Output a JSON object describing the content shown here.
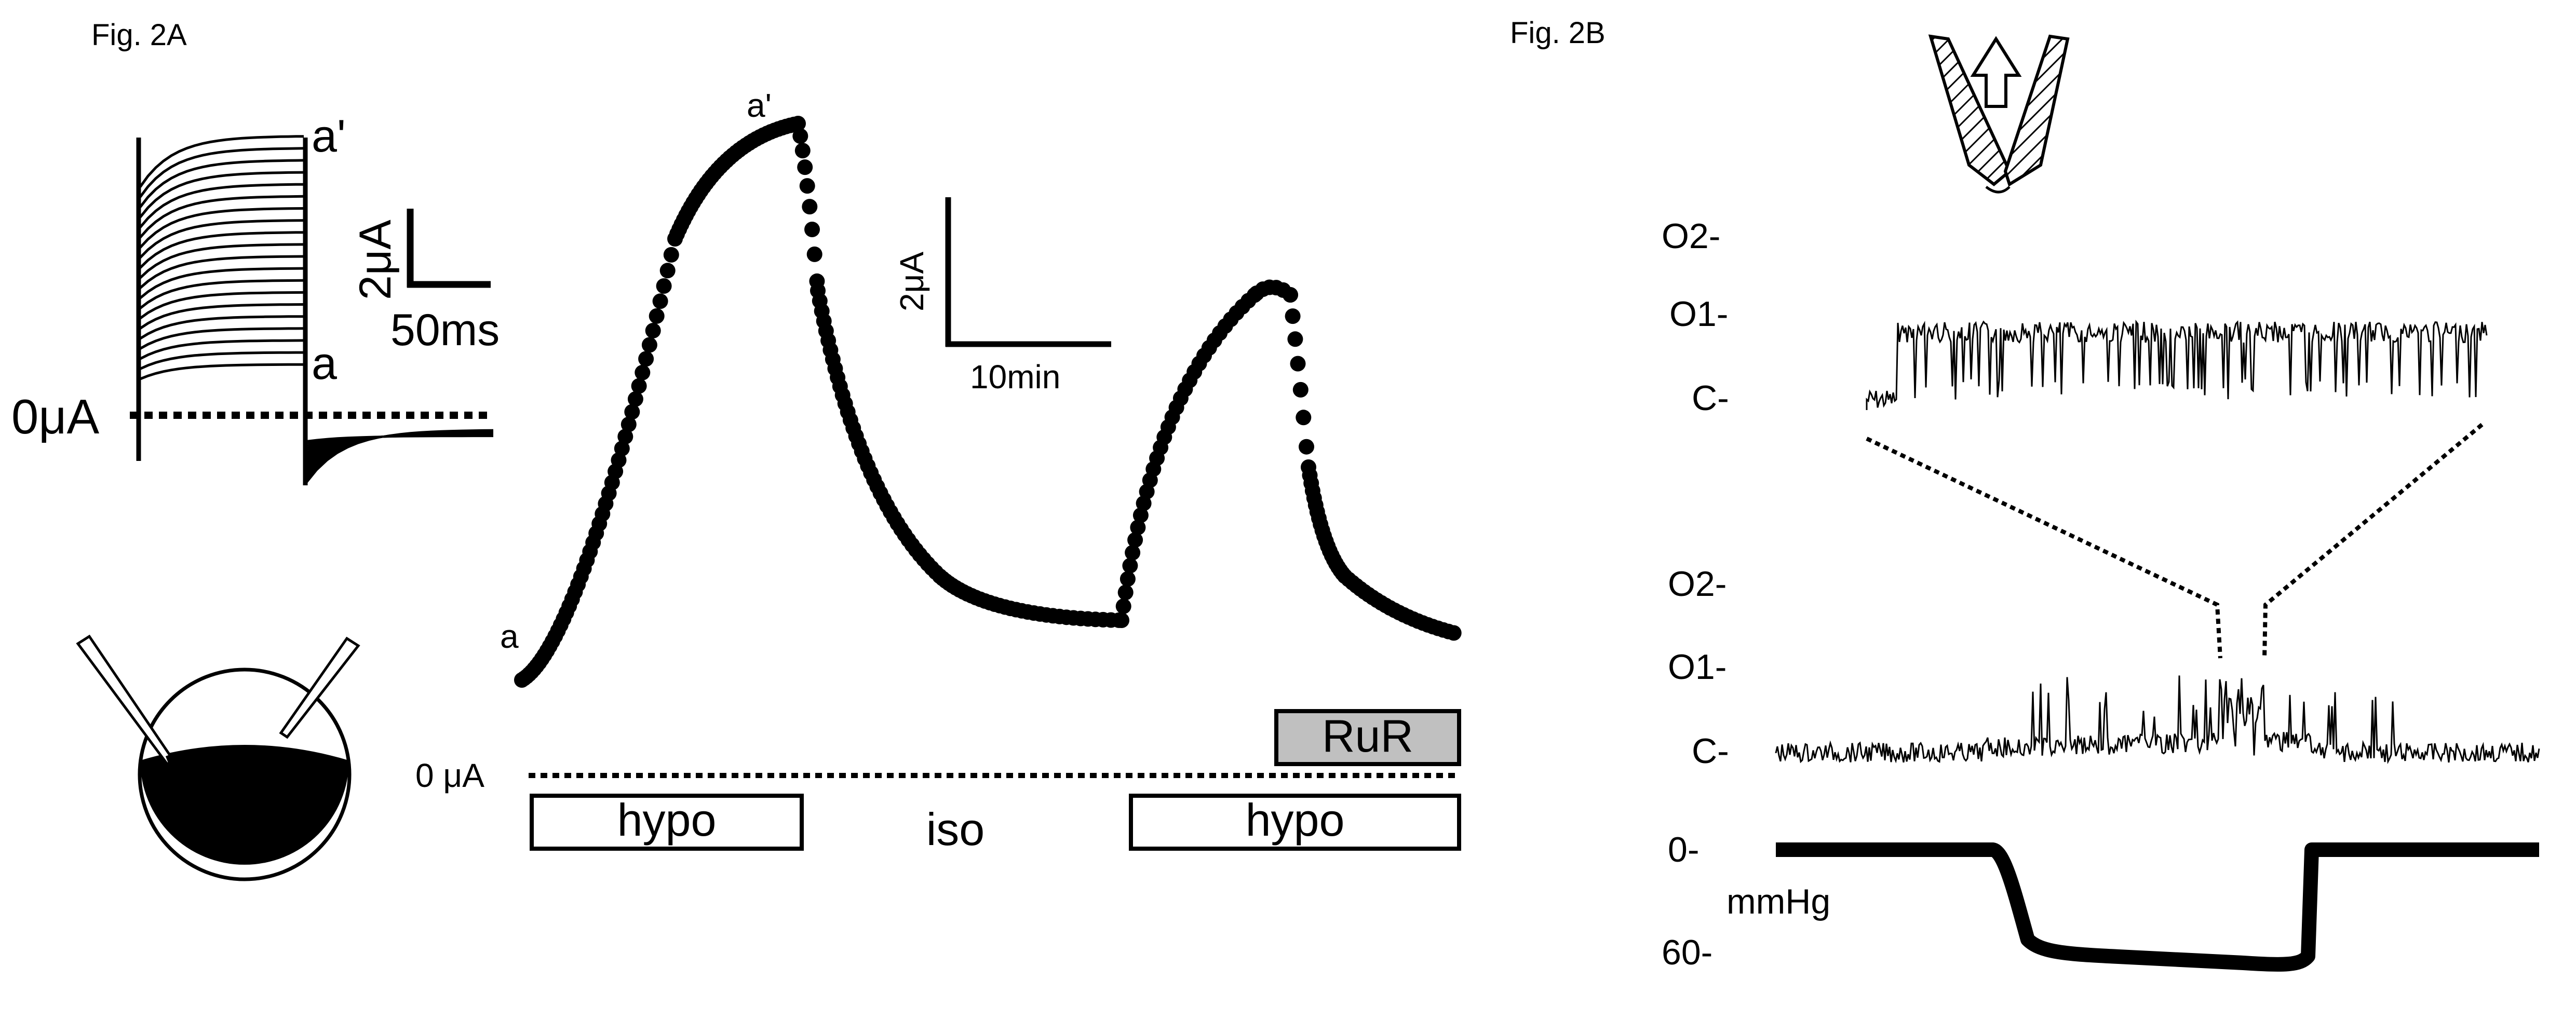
{
  "figure_a": {
    "label": "Fig. 2A",
    "steps_inset": {
      "point_top": "a'",
      "point_bottom": "a",
      "zero_label": "0μA",
      "scale_current": "2μA",
      "scale_time": "50ms"
    },
    "time_course": {
      "point_start": "a",
      "point_peak": "a'",
      "scale_current": "2μA",
      "scale_time": "10min",
      "zero_label": "0 μA",
      "bars": {
        "hypo_1": "hypo",
        "iso": "iso",
        "hypo_2": "hypo",
        "rur": "RuR"
      }
    }
  },
  "figure_b": {
    "label": "Fig. 2B",
    "expanded_trace": {
      "levels": [
        "O2-",
        "O1-",
        "C-"
      ]
    },
    "full_trace": {
      "levels": [
        "O2-",
        "O1-",
        "C-"
      ]
    },
    "pressure": {
      "zero_label": "0-",
      "unit": "mmHg",
      "max_label": "60-"
    }
  },
  "colors": {
    "ink": "#000000",
    "rur_fill": "#c0c0c0"
  }
}
